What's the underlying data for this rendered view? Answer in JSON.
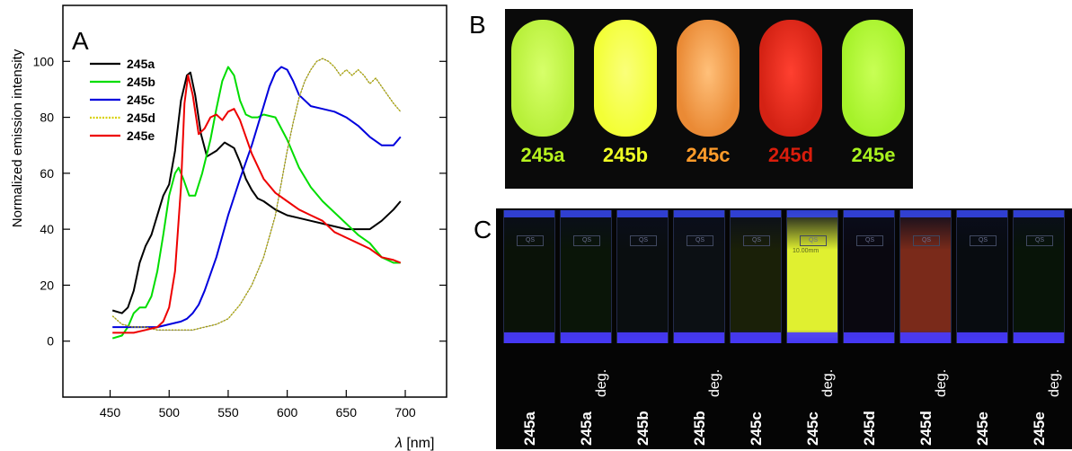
{
  "panels": {
    "a_letter": "A",
    "b_letter": "B",
    "c_letter": "C"
  },
  "chart_data": {
    "type": "line",
    "title": "",
    "xlabel_symbol": "λ",
    "xlabel_unit": "[nm]",
    "ylabel": "Normalized emission intensity",
    "xlim": [
      410,
      735
    ],
    "ylim": [
      -20,
      120
    ],
    "xticks": [
      450,
      500,
      550,
      600,
      650,
      700
    ],
    "yticks": [
      0,
      20,
      40,
      60,
      80,
      100
    ],
    "legend_position": "top-left",
    "series": [
      {
        "name": "245a",
        "color": "#000000",
        "dash": "solid",
        "x": [
          452,
          460,
          465,
          470,
          475,
          480,
          485,
          490,
          495,
          500,
          505,
          510,
          515,
          518,
          522,
          527,
          532,
          540,
          547,
          555,
          560,
          565,
          570,
          575,
          580,
          590,
          600,
          610,
          620,
          630,
          640,
          650,
          660,
          670,
          680,
          690,
          696
        ],
        "y": [
          11,
          10,
          12,
          18,
          28,
          34,
          38,
          45,
          52,
          56,
          68,
          86,
          95,
          96,
          88,
          74,
          66,
          68,
          71,
          69,
          64,
          58,
          54,
          51,
          50,
          47,
          45,
          44,
          43,
          42,
          41,
          40,
          40,
          40,
          43,
          47,
          50
        ]
      },
      {
        "name": "245b",
        "color": "#00dd00",
        "dash": "solid",
        "x": [
          452,
          460,
          465,
          470,
          475,
          480,
          485,
          490,
          495,
          500,
          505,
          508,
          512,
          517,
          522,
          528,
          535,
          540,
          545,
          550,
          555,
          560,
          565,
          570,
          575,
          580,
          590,
          600,
          610,
          620,
          630,
          640,
          650,
          660,
          670,
          680,
          690,
          696
        ],
        "y": [
          1,
          2,
          5,
          10,
          12,
          12,
          16,
          25,
          38,
          52,
          60,
          62,
          58,
          52,
          52,
          60,
          72,
          83,
          93,
          98,
          95,
          86,
          81,
          80,
          80,
          81,
          80,
          72,
          62,
          55,
          50,
          46,
          42,
          38,
          35,
          30,
          28,
          28
        ]
      },
      {
        "name": "245c",
        "color": "#0000dd",
        "dash": "solid",
        "x": [
          452,
          460,
          470,
          480,
          490,
          500,
          510,
          515,
          520,
          525,
          530,
          540,
          550,
          560,
          570,
          580,
          585,
          590,
          595,
          600,
          605,
          610,
          620,
          630,
          640,
          650,
          660,
          670,
          680,
          690,
          696
        ],
        "y": [
          5,
          5,
          5,
          5,
          5,
          6,
          7,
          8,
          10,
          13,
          18,
          30,
          45,
          58,
          70,
          84,
          91,
          96,
          98,
          97,
          93,
          88,
          84,
          83,
          82,
          80,
          77,
          73,
          70,
          70,
          73
        ]
      },
      {
        "name": "245d",
        "color": "#d8d000",
        "dash": "dotted",
        "x": [
          452,
          460,
          470,
          480,
          490,
          500,
          510,
          520,
          530,
          540,
          550,
          560,
          570,
          580,
          590,
          600,
          605,
          610,
          615,
          620,
          625,
          630,
          635,
          640,
          645,
          650,
          655,
          660,
          665,
          670,
          675,
          680,
          685,
          690,
          696
        ],
        "y": [
          9,
          6,
          5,
          5,
          4,
          4,
          4,
          4,
          5,
          6,
          8,
          13,
          20,
          30,
          45,
          68,
          78,
          87,
          93,
          97,
          100,
          101,
          100,
          98,
          95,
          97,
          95,
          97,
          95,
          92,
          94,
          91,
          88,
          85,
          82
        ]
      },
      {
        "name": "245e",
        "color": "#ee0000",
        "dash": "solid",
        "x": [
          452,
          460,
          470,
          480,
          490,
          495,
          500,
          505,
          510,
          513,
          516,
          520,
          525,
          530,
          535,
          540,
          545,
          550,
          555,
          560,
          570,
          580,
          590,
          600,
          610,
          620,
          630,
          640,
          650,
          660,
          670,
          680,
          690,
          696
        ],
        "y": [
          3,
          3,
          3,
          4,
          5,
          7,
          12,
          25,
          55,
          85,
          95,
          88,
          74,
          76,
          80,
          81,
          79,
          82,
          83,
          79,
          67,
          58,
          53,
          50,
          47,
          45,
          43,
          39,
          37,
          35,
          33,
          30,
          29,
          28
        ]
      }
    ]
  },
  "vials": [
    {
      "label": "245a",
      "label_color": "#b6f21e",
      "fill": "#b8f03a",
      "inner": "#d7ff6a"
    },
    {
      "label": "245b",
      "label_color": "#f0ff24",
      "fill": "#f3ff36",
      "inner": "#faff7a"
    },
    {
      "label": "245c",
      "label_color": "#ff9b2a",
      "fill": "#ea8a35",
      "inner": "#ffc07a"
    },
    {
      "label": "245d",
      "label_color": "#d91d0c",
      "fill": "#d42214",
      "inner": "#ff4030"
    },
    {
      "label": "245e",
      "label_color": "#a8f21e",
      "fill": "#a6f22a",
      "inner": "#c8ff55"
    }
  ],
  "cuvettes": [
    {
      "name": "245a",
      "suffix": "",
      "glow": "#0a1208"
    },
    {
      "name": "245a",
      "suffix": "deg.",
      "glow": "#0a1508"
    },
    {
      "name": "245b",
      "suffix": "",
      "glow": "#0a0e10"
    },
    {
      "name": "245b",
      "suffix": "deg.",
      "glow": "#0c1014"
    },
    {
      "name": "245c",
      "suffix": "",
      "glow": "#1a2008"
    },
    {
      "name": "245c",
      "suffix": "deg.",
      "glow": "#e0f030"
    },
    {
      "name": "245d",
      "suffix": "",
      "glow": "#0a0810"
    },
    {
      "name": "245d",
      "suffix": "deg.",
      "glow": "#7a2a1a"
    },
    {
      "name": "245e",
      "suffix": "",
      "glow": "#080c10"
    },
    {
      "name": "245e",
      "suffix": "deg.",
      "glow": "#081408"
    }
  ],
  "cuvette_mark": "QS",
  "cuvette_size": "10.00mm"
}
